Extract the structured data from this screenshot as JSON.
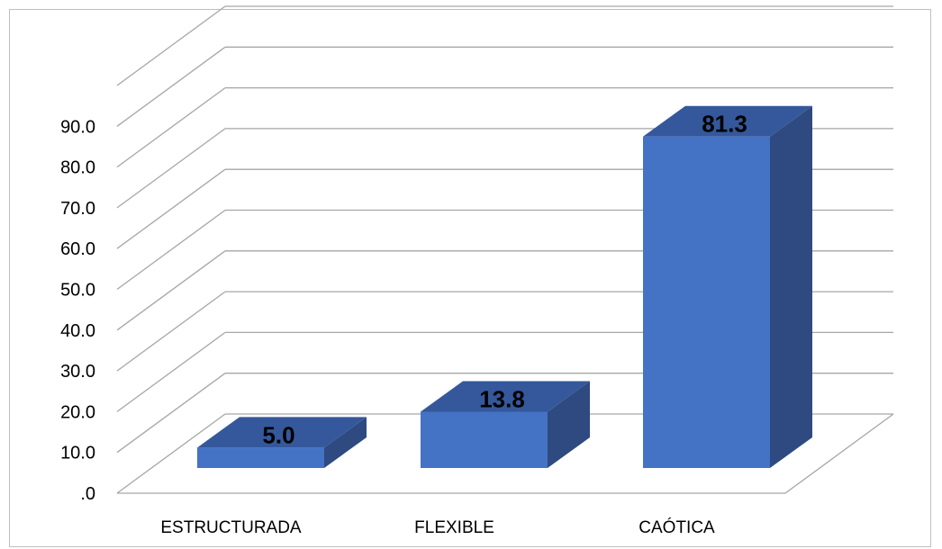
{
  "chart_data": {
    "type": "bar",
    "categories": [
      "ESTRUCTURADA",
      "FLEXIBLE",
      "CAÓTICA"
    ],
    "values": [
      5.0,
      13.8,
      81.3
    ],
    "data_labels": [
      "5.0",
      "13.8",
      "81.3"
    ],
    "y_tick_labels": [
      ".0",
      "10.0",
      "20.0",
      "30.0",
      "40.0",
      "50.0",
      "60.0",
      "70.0",
      "80.0",
      "90.0"
    ],
    "ylim": [
      0,
      90
    ],
    "title": "",
    "xlabel": "",
    "ylabel": "",
    "grid": true,
    "legend": "none",
    "style": "3d-column",
    "colors": {
      "bar_front": "#4472c4",
      "bar_top": "#34589b",
      "bar_side": "#2e4a80",
      "gridline": "#a6a6a6"
    }
  }
}
